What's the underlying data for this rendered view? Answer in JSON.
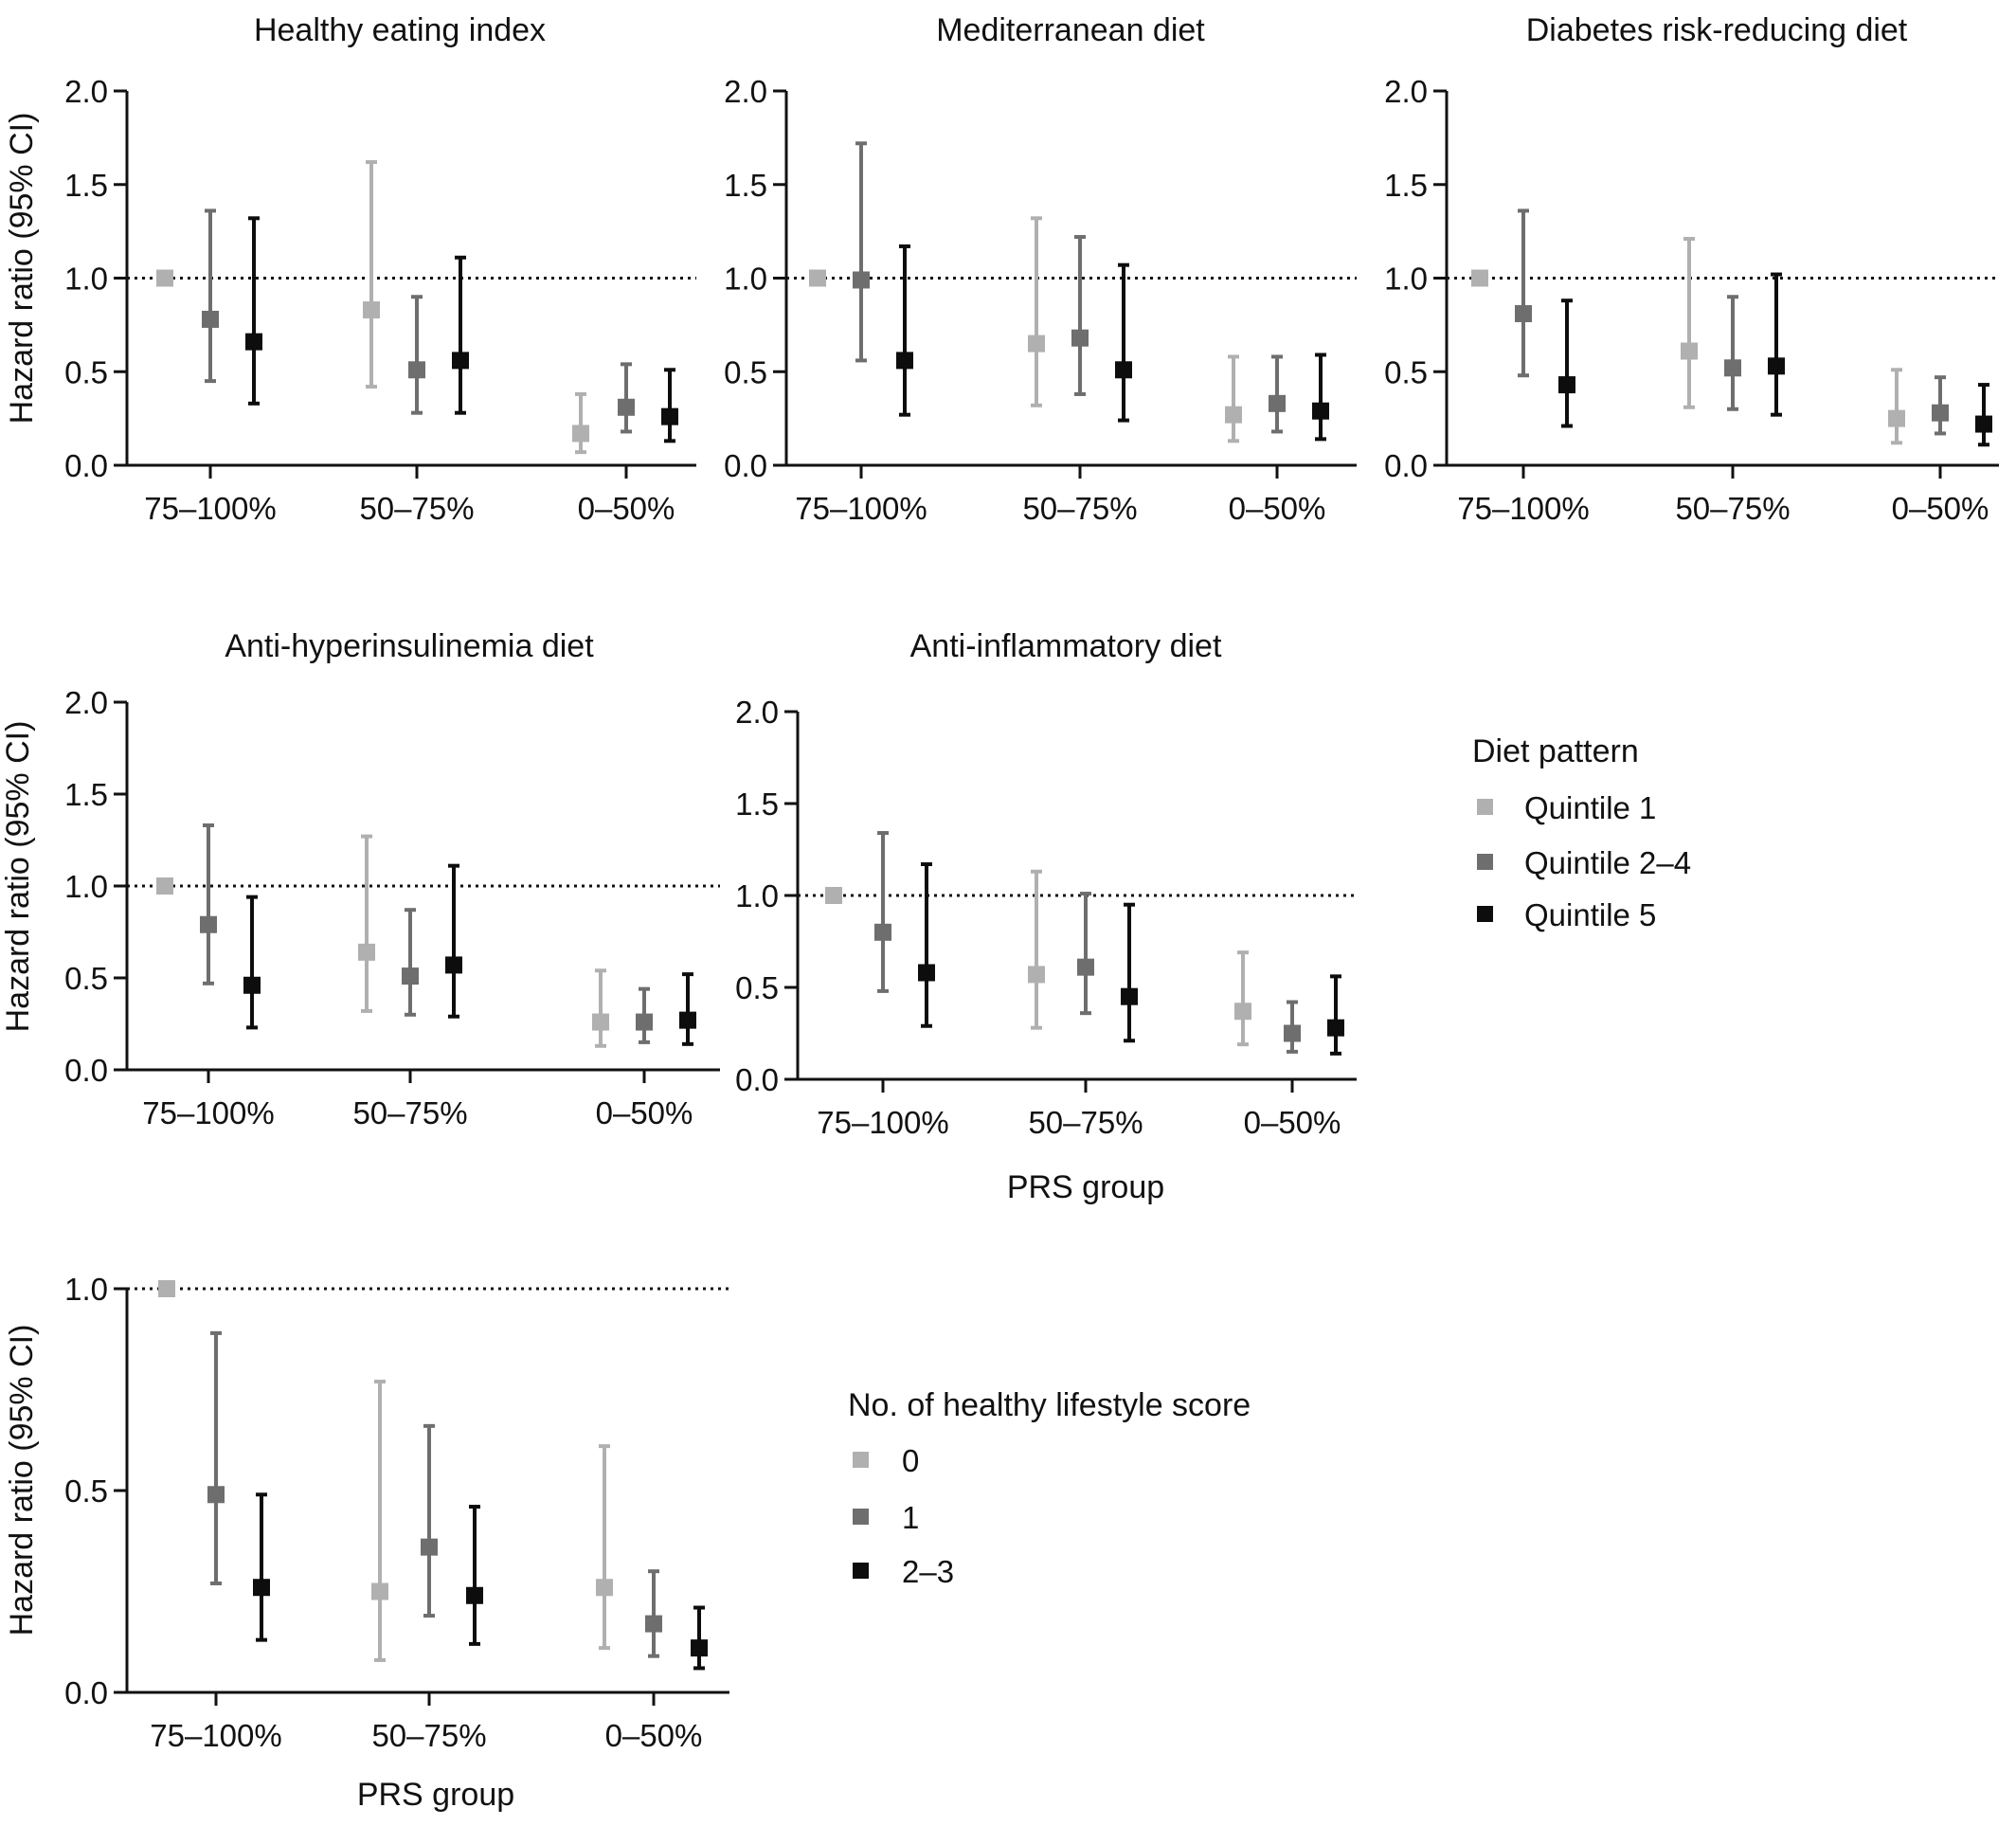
{
  "colors": {
    "q1": "#b0b0b0",
    "q2": "#6e6e6e",
    "q3": "#0d0d0d",
    "axis": "#111111"
  },
  "chart_data": [
    {
      "type": "errorbar",
      "title": "Healthy eating index",
      "xlabel": "",
      "ylabel": "Hazard ratio (95% CI)",
      "ylim": [
        0,
        2.0
      ],
      "yticks": [
        "0.0",
        "0.5",
        "1.0",
        "1.5",
        "2.0"
      ],
      "reference_line": 1.0,
      "categories": [
        "75–100%",
        "50–75%",
        "0–50%"
      ],
      "series": [
        {
          "name": "Quintile 1",
          "values": [
            1.0,
            0.83,
            0.17
          ],
          "lower": [
            null,
            0.42,
            0.07
          ],
          "upper": [
            null,
            1.62,
            0.38
          ]
        },
        {
          "name": "Quintile 2–4",
          "values": [
            0.78,
            0.51,
            0.31
          ],
          "lower": [
            0.45,
            0.28,
            0.18
          ],
          "upper": [
            1.36,
            0.9,
            0.54
          ]
        },
        {
          "name": "Quintile 5",
          "values": [
            0.66,
            0.56,
            0.26
          ],
          "lower": [
            0.33,
            0.28,
            0.13
          ],
          "upper": [
            1.32,
            1.11,
            0.51
          ]
        }
      ]
    },
    {
      "type": "errorbar",
      "title": "Mediterranean diet",
      "xlabel": "",
      "ylabel": "",
      "ylim": [
        0,
        2.0
      ],
      "yticks": [
        "0.0",
        "0.5",
        "1.0",
        "1.5",
        "2.0"
      ],
      "reference_line": 1.0,
      "categories": [
        "75–100%",
        "50–75%",
        "0–50%"
      ],
      "series": [
        {
          "name": "Quintile 1",
          "values": [
            1.0,
            0.65,
            0.27
          ],
          "lower": [
            null,
            0.32,
            0.13
          ],
          "upper": [
            null,
            1.32,
            0.58
          ]
        },
        {
          "name": "Quintile 2–4",
          "values": [
            0.99,
            0.68,
            0.33
          ],
          "lower": [
            0.56,
            0.38,
            0.18
          ],
          "upper": [
            1.72,
            1.22,
            0.58
          ]
        },
        {
          "name": "Quintile 5",
          "values": [
            0.56,
            0.51,
            0.29
          ],
          "lower": [
            0.27,
            0.24,
            0.14
          ],
          "upper": [
            1.17,
            1.07,
            0.59
          ]
        }
      ]
    },
    {
      "type": "errorbar",
      "title": "Diabetes risk-reducing diet",
      "xlabel": "",
      "ylabel": "",
      "ylim": [
        0,
        2.0
      ],
      "yticks": [
        "0.0",
        "0.5",
        "1.0",
        "1.5",
        "2.0"
      ],
      "reference_line": 1.0,
      "categories": [
        "75–100%",
        "50–75%",
        "0–50%"
      ],
      "series": [
        {
          "name": "Quintile 1",
          "values": [
            1.0,
            0.61,
            0.25
          ],
          "lower": [
            null,
            0.31,
            0.12
          ],
          "upper": [
            null,
            1.21,
            0.51
          ]
        },
        {
          "name": "Quintile 2–4",
          "values": [
            0.81,
            0.52,
            0.28
          ],
          "lower": [
            0.48,
            0.3,
            0.17
          ],
          "upper": [
            1.36,
            0.9,
            0.47
          ]
        },
        {
          "name": "Quintile 5",
          "values": [
            0.43,
            0.53,
            0.22
          ],
          "lower": [
            0.21,
            0.27,
            0.11
          ],
          "upper": [
            0.88,
            1.02,
            0.43
          ]
        }
      ]
    },
    {
      "type": "errorbar",
      "title": "Anti-hyperinsulinemia diet",
      "xlabel": "",
      "ylabel": "Hazard ratio (95% CI)",
      "ylim": [
        0,
        2.0
      ],
      "yticks": [
        "0.0",
        "0.5",
        "1.0",
        "1.5",
        "2.0"
      ],
      "reference_line": 1.0,
      "categories": [
        "75–100%",
        "50–75%",
        "0–50%"
      ],
      "series": [
        {
          "name": "Quintile 1",
          "values": [
            1.0,
            0.64,
            0.26
          ],
          "lower": [
            null,
            0.32,
            0.13
          ],
          "upper": [
            null,
            1.27,
            0.54
          ]
        },
        {
          "name": "Quintile 2–4",
          "values": [
            0.79,
            0.51,
            0.26
          ],
          "lower": [
            0.47,
            0.3,
            0.15
          ],
          "upper": [
            1.33,
            0.87,
            0.44
          ]
        },
        {
          "name": "Quintile 5",
          "values": [
            0.46,
            0.57,
            0.27
          ],
          "lower": [
            0.23,
            0.29,
            0.14
          ],
          "upper": [
            0.94,
            1.11,
            0.52
          ]
        }
      ]
    },
    {
      "type": "errorbar",
      "title": "Anti-inflammatory diet",
      "xlabel": "PRS group",
      "ylabel": "",
      "ylim": [
        0,
        2.0
      ],
      "yticks": [
        "0.0",
        "0.5",
        "1.0",
        "1.5",
        "2.0"
      ],
      "reference_line": 1.0,
      "categories": [
        "75–100%",
        "50–75%",
        "0–50%"
      ],
      "series": [
        {
          "name": "Quintile 1",
          "values": [
            1.0,
            0.57,
            0.37
          ],
          "lower": [
            null,
            0.28,
            0.19
          ],
          "upper": [
            null,
            1.13,
            0.69
          ]
        },
        {
          "name": "Quintile 2–4",
          "values": [
            0.8,
            0.61,
            0.25
          ],
          "lower": [
            0.48,
            0.36,
            0.15
          ],
          "upper": [
            1.34,
            1.01,
            0.42
          ]
        },
        {
          "name": "Quintile 5",
          "values": [
            0.58,
            0.45,
            0.28
          ],
          "lower": [
            0.29,
            0.21,
            0.14
          ],
          "upper": [
            1.17,
            0.95,
            0.56
          ]
        }
      ]
    },
    {
      "type": "errorbar",
      "title": "",
      "xlabel": "PRS group",
      "ylabel": "Hazard ratio (95% CI)",
      "ylim": [
        0,
        1.0
      ],
      "yticks": [
        "0.0",
        "0.5",
        "1.0"
      ],
      "reference_line": 1.0,
      "categories": [
        "75–100%",
        "50–75%",
        "0–50%"
      ],
      "series": [
        {
          "name": "0",
          "values": [
            1.0,
            0.25,
            0.26
          ],
          "lower": [
            null,
            0.08,
            0.11
          ],
          "upper": [
            null,
            0.77,
            0.61
          ]
        },
        {
          "name": "1",
          "values": [
            0.49,
            0.36,
            0.17
          ],
          "lower": [
            0.27,
            0.19,
            0.09
          ],
          "upper": [
            0.89,
            0.66,
            0.3
          ]
        },
        {
          "name": "2–3",
          "values": [
            0.26,
            0.24,
            0.11
          ],
          "lower": [
            0.13,
            0.12,
            0.06
          ],
          "upper": [
            0.49,
            0.46,
            0.21
          ]
        }
      ]
    }
  ],
  "legends": [
    {
      "title": "Diet pattern",
      "items": [
        "Quintile 1",
        "Quintile 2–4",
        "Quintile 5"
      ]
    },
    {
      "title": "No. of healthy lifestyle score",
      "items": [
        "0",
        "1",
        "2–3"
      ]
    }
  ]
}
